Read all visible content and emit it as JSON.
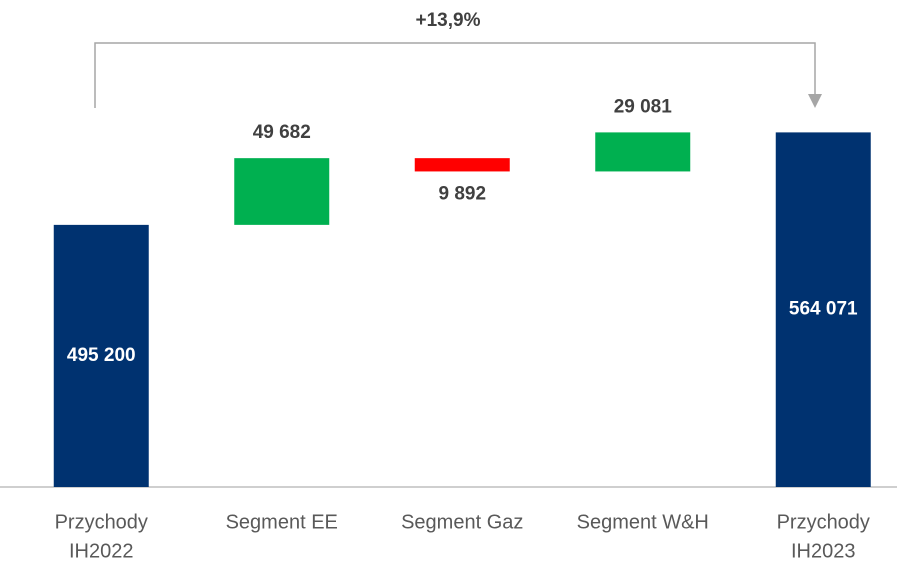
{
  "chart_data": {
    "type": "waterfall",
    "categories": [
      [
        "Przychody",
        "IH2022"
      ],
      [
        "Segment EE"
      ],
      [
        "Segment Gaz"
      ],
      [
        "Segment W&H"
      ],
      [
        "Przychody",
        "IH2023"
      ]
    ],
    "values": [
      495200,
      49682,
      -9892,
      29081,
      564071
    ],
    "value_labels": [
      "495 200",
      "49 682",
      "9 892",
      "29 081",
      "564 071"
    ],
    "measure": [
      "absolute",
      "relative",
      "relative",
      "relative",
      "total"
    ],
    "colors": [
      "#003270",
      "#00b050",
      "#ff0000",
      "#00b050",
      "#003270"
    ],
    "ylim": [
      300000,
      580000
    ],
    "annotation": "+13,9%"
  }
}
